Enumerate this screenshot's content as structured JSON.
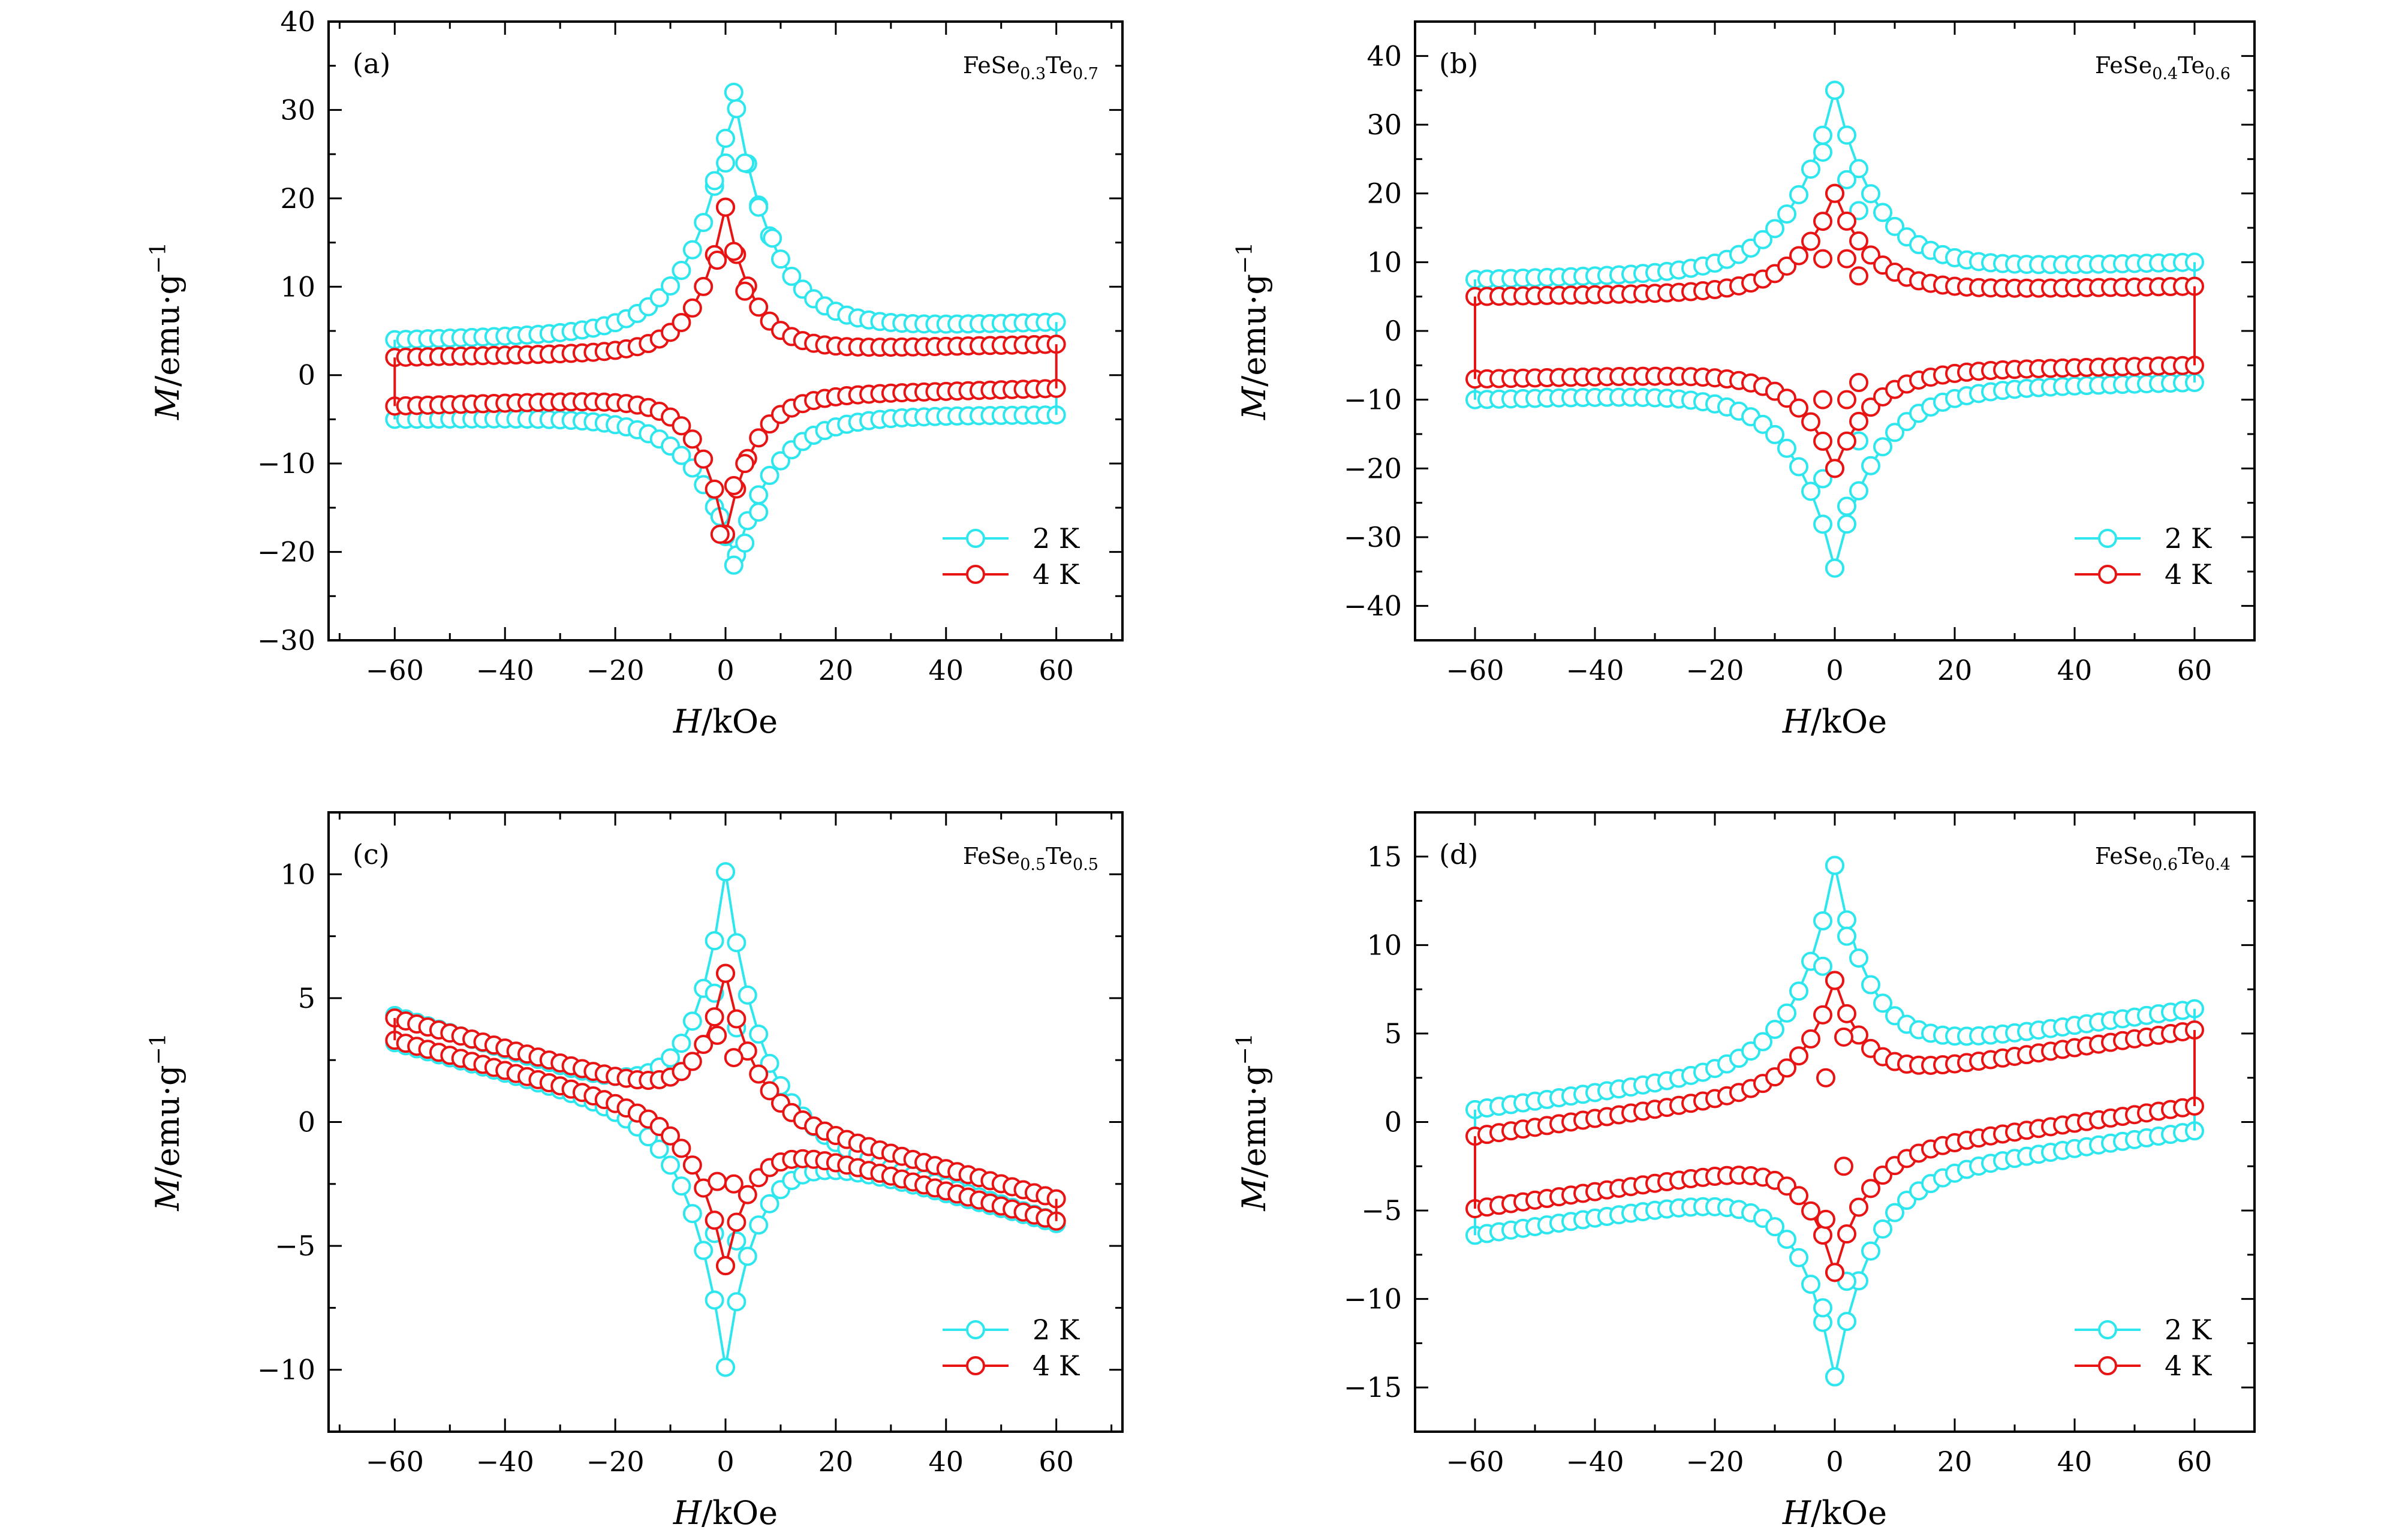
{
  "figure": {
    "colors": {
      "series_2K": "#2ee6ee",
      "series_4K": "#e81414",
      "axes": "#000000"
    },
    "series_labels": [
      "2 K",
      "4 K"
    ],
    "x_title": {
      "italic": "H",
      "rest": "/kOe"
    },
    "y_title": {
      "italic": "M",
      "rest": "/emu·g",
      "sup": "−1"
    }
  },
  "chart_data": [
    {
      "type": "line",
      "label": "(a)",
      "formula": {
        "el1": "FeSe",
        "sub1": "0.3",
        "el2": "Te",
        "sub2": "0.7"
      },
      "xlabel": "H/kOe",
      "ylabel": "M/emu·g−1",
      "xlim": [
        -72,
        72
      ],
      "ylim": [
        -30,
        40
      ],
      "xticks": [
        -60,
        -40,
        -20,
        0,
        20,
        40,
        60
      ],
      "yticks": [
        -30,
        -20,
        -10,
        0,
        10,
        20,
        30,
        40
      ],
      "legend": [
        "2 K",
        "4 K"
      ],
      "legend_position": "bottom-right",
      "series": [
        {
          "name": "2 K",
          "peak_points": [
            [
              -2,
              22
            ],
            [
              0,
              24
            ],
            [
              1.5,
              32
            ],
            [
              3.5,
              24
            ],
            [
              6,
              19
            ],
            [
              8.5,
              15.5
            ],
            [
              -1,
              -16
            ],
            [
              1.5,
              -21.5
            ],
            [
              3.5,
              -19
            ],
            [
              6,
              -15.5
            ]
          ],
          "envelope": {
            "upper_start": 4,
            "upper_end": 6,
            "lower_start": -5,
            "lower_end": -4.5,
            "peak": 32,
            "trough": -21.5,
            "peak_field": 1.5,
            "width": 7
          }
        },
        {
          "name": "4 K",
          "peak_points": [
            [
              -1.5,
              13
            ],
            [
              0,
              19
            ],
            [
              1.5,
              14
            ],
            [
              3.5,
              9.5
            ],
            [
              -1,
              -18
            ],
            [
              1.5,
              -12.5
            ],
            [
              3.5,
              -10
            ]
          ],
          "envelope": {
            "upper_start": 2,
            "upper_end": 3.5,
            "lower_start": -3.5,
            "lower_end": -1.5,
            "peak": 19,
            "trough": -18,
            "peak_field": 0,
            "width": 5
          }
        }
      ]
    },
    {
      "type": "line",
      "label": "(b)",
      "formula": {
        "el1": "FeSe",
        "sub1": "0.4",
        "el2": "Te",
        "sub2": "0.6"
      },
      "xlabel": "H/kOe",
      "ylabel": "M/emu·g−1",
      "xlim": [
        -70,
        70
      ],
      "ylim": [
        -45,
        45
      ],
      "xticks": [
        -60,
        -40,
        -20,
        0,
        20,
        40,
        60
      ],
      "yticks": [
        -40,
        -30,
        -20,
        -10,
        0,
        10,
        20,
        30,
        40
      ],
      "legend": [
        "2 K",
        "4 K"
      ],
      "legend_position": "bottom-right",
      "series": [
        {
          "name": "2 K",
          "peak_points": [
            [
              -2,
              26
            ],
            [
              0,
              35
            ],
            [
              2,
              22
            ],
            [
              4,
              17.5
            ],
            [
              -2,
              -21.5
            ],
            [
              0,
              -34.5
            ],
            [
              2,
              -25.5
            ],
            [
              4,
              -16
            ]
          ],
          "envelope": {
            "upper_start": 7.5,
            "upper_end": 10,
            "lower_start": -10,
            "lower_end": -7.5,
            "peak": 35,
            "trough": -34.5,
            "peak_field": 0,
            "width": 7
          }
        },
        {
          "name": "4 K",
          "peak_points": [
            [
              -2,
              10.5
            ],
            [
              0,
              20
            ],
            [
              2,
              10.5
            ],
            [
              4,
              8
            ],
            [
              -2,
              -10
            ],
            [
              0,
              -20
            ],
            [
              2,
              -10
            ],
            [
              4,
              -7.5
            ]
          ],
          "envelope": {
            "upper_start": 5,
            "upper_end": 6.5,
            "lower_start": -7,
            "lower_end": -5,
            "peak": 20,
            "trough": -20,
            "peak_field": 0,
            "width": 6
          }
        }
      ]
    },
    {
      "type": "line",
      "label": "(c)",
      "formula": {
        "el1": "FeSe",
        "sub1": "0.5",
        "el2": "Te",
        "sub2": "0.5"
      },
      "xlabel": "H/kOe",
      "ylabel": "M/emu·g−1",
      "xlim": [
        -72,
        72
      ],
      "ylim": [
        -12.5,
        12.5
      ],
      "xticks": [
        -60,
        -40,
        -20,
        0,
        20,
        40,
        60
      ],
      "yticks": [
        -10,
        -5,
        0,
        5,
        10
      ],
      "legend": [
        "2 K",
        "4 K"
      ],
      "legend_position": "bottom-right",
      "series": [
        {
          "name": "2 K",
          "peak_points": [
            [
              -2,
              5.2
            ],
            [
              0,
              10.1
            ],
            [
              2,
              3.8
            ],
            [
              -2,
              -4.5
            ],
            [
              0,
              -9.9
            ],
            [
              2,
              -4.8
            ]
          ],
          "envelope": {
            "upper_start": 4.3,
            "upper_end": -4,
            "lower_start": 3.2,
            "lower_end": -4.1,
            "peak": 10.1,
            "trough": -9.9,
            "peak_field": 0,
            "width": 6
          }
        },
        {
          "name": "4 K",
          "peak_points": [
            [
              -1.5,
              3.5
            ],
            [
              0,
              6
            ],
            [
              1.5,
              2.6
            ],
            [
              -1.5,
              -2.4
            ],
            [
              0,
              -5.8
            ],
            [
              1.5,
              -2.5
            ]
          ],
          "envelope": {
            "upper_start": 4.2,
            "upper_end": -3.1,
            "lower_start": 3.3,
            "lower_end": -4,
            "peak": 6,
            "trough": -5.8,
            "peak_field": 0,
            "width": 5
          }
        }
      ]
    },
    {
      "type": "line",
      "label": "(d)",
      "formula": {
        "el1": "FeSe",
        "sub1": "0.6",
        "el2": "Te",
        "sub2": "0.4"
      },
      "xlabel": "H/kOe",
      "ylabel": "M/emu·g−1",
      "xlim": [
        -70,
        70
      ],
      "ylim": [
        -17.5,
        17.5
      ],
      "xticks": [
        -60,
        -40,
        -20,
        0,
        20,
        40,
        60
      ],
      "yticks": [
        -15,
        -10,
        -5,
        0,
        5,
        10,
        15
      ],
      "legend": [
        "2 K",
        "4 K"
      ],
      "legend_position": "bottom-right",
      "series": [
        {
          "name": "2 K",
          "peak_points": [
            [
              -2,
              8.8
            ],
            [
              0,
              14.5
            ],
            [
              2,
              10.5
            ],
            [
              -2,
              -10.5
            ],
            [
              0,
              -14.4
            ],
            [
              2,
              -9
            ]
          ],
          "envelope": {
            "upper_start": 0.7,
            "upper_end": 6.4,
            "lower_start": -6.4,
            "lower_end": -0.5,
            "peak": 14.5,
            "trough": -14.4,
            "peak_field": 0,
            "width": 6
          }
        },
        {
          "name": "4 K",
          "peak_points": [
            [
              -1.5,
              2.5
            ],
            [
              0,
              8
            ],
            [
              1.5,
              4.8
            ],
            [
              -1.5,
              -5.5
            ],
            [
              0,
              -8.5
            ],
            [
              1.5,
              -2.5
            ]
          ],
          "envelope": {
            "upper_start": -0.8,
            "upper_end": 5.2,
            "lower_start": -4.9,
            "lower_end": 0.9,
            "peak": 8,
            "trough": -8.5,
            "peak_field": 0,
            "width": 5
          }
        }
      ]
    }
  ]
}
